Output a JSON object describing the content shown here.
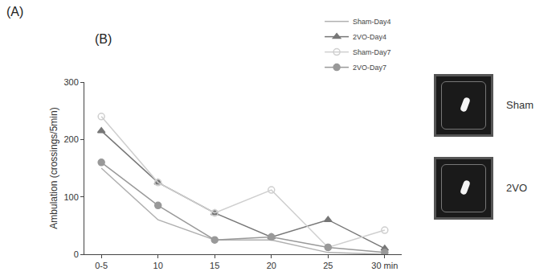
{
  "chart_data": {
    "type": "line",
    "y_label": "Ambulation (crossings/5min)",
    "categories": [
      "0-5",
      "10",
      "15",
      "20",
      "25",
      "30 min"
    ],
    "series": [
      {
        "name": "Sham-Day4",
        "color": "#b0b0b0",
        "marker": "none",
        "values": [
          150,
          60,
          25,
          25,
          3,
          0
        ]
      },
      {
        "name": "2VO-Day4",
        "color": "#777777",
        "marker": "triangle",
        "values": [
          215,
          125,
          72,
          30,
          60,
          10
        ]
      },
      {
        "name": "Sham-Day7",
        "color": "#cfcfcf",
        "marker": "open_circle",
        "values": [
          240,
          125,
          72,
          112,
          12,
          42
        ]
      },
      {
        "name": "2VO-Day7",
        "color": "#999999",
        "marker": "circle",
        "values": [
          160,
          85,
          25,
          30,
          12,
          3
        ]
      }
    ],
    "ylim": [
      0,
      300
    ],
    "yticks": [
      0,
      100,
      200,
      300
    ],
    "grid": false,
    "legend": "top right"
  },
  "figure": {
    "panel_labels": [
      "(A)",
      "(B)"
    ],
    "image_labels": [
      "Sham",
      "2VO"
    ]
  }
}
